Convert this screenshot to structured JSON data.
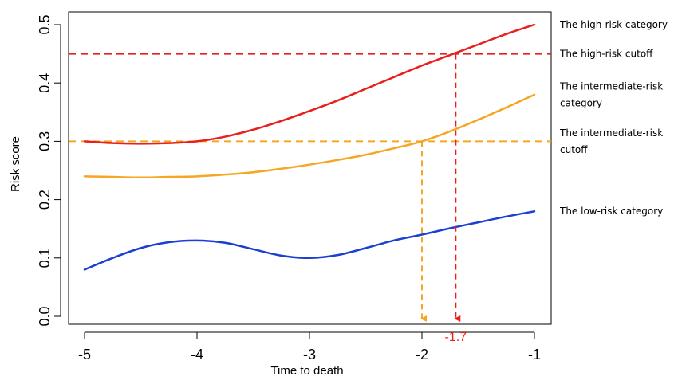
{
  "chart_data": {
    "type": "line",
    "title": "",
    "xlabel": "Time to death",
    "ylabel": "Risk score",
    "xlim": [
      -5.1,
      -0.85
    ],
    "ylim": [
      -0.02,
      0.525
    ],
    "x_ticks": [
      "-5",
      "-4",
      "-3",
      "-2",
      "-1"
    ],
    "y_ticks": [
      "0.0",
      "0.1",
      "0.2",
      "0.3",
      "0.4",
      "0.5"
    ],
    "grid": false,
    "legend_position": "right",
    "series": [
      {
        "name": "The high-risk category",
        "color": "#e8201c",
        "x": [
          -5.0,
          -4.75,
          -4.5,
          -4.25,
          -4.0,
          -3.75,
          -3.5,
          -3.25,
          -3.0,
          -2.75,
          -2.5,
          -2.25,
          -2.0,
          -1.75,
          -1.5,
          -1.25,
          -1.0
        ],
        "y": [
          0.3,
          0.297,
          0.296,
          0.297,
          0.3,
          0.308,
          0.32,
          0.335,
          0.352,
          0.37,
          0.39,
          0.41,
          0.43,
          0.448,
          0.466,
          0.484,
          0.5
        ]
      },
      {
        "name": "The intermediate-risk category",
        "color": "#f5a623",
        "x": [
          -5.0,
          -4.75,
          -4.5,
          -4.25,
          -4.0,
          -3.75,
          -3.5,
          -3.25,
          -3.0,
          -2.75,
          -2.5,
          -2.25,
          -2.0,
          -1.75,
          -1.5,
          -1.25,
          -1.0
        ],
        "y": [
          0.24,
          0.239,
          0.238,
          0.239,
          0.24,
          0.243,
          0.247,
          0.253,
          0.26,
          0.268,
          0.277,
          0.288,
          0.3,
          0.317,
          0.337,
          0.358,
          0.38
        ]
      },
      {
        "name": "The low-risk category",
        "color": "#1a3fd4",
        "x": [
          -5.0,
          -4.75,
          -4.5,
          -4.25,
          -4.0,
          -3.75,
          -3.5,
          -3.25,
          -3.0,
          -2.75,
          -2.5,
          -2.25,
          -2.0,
          -1.75,
          -1.5,
          -1.25,
          -1.0
        ],
        "y": [
          0.08,
          0.1,
          0.117,
          0.127,
          0.13,
          0.126,
          0.115,
          0.104,
          0.1,
          0.105,
          0.117,
          0.13,
          0.14,
          0.151,
          0.161,
          0.171,
          0.18
        ]
      }
    ],
    "cutoffs": [
      {
        "name": "The high-risk cutoff",
        "y": 0.45,
        "color": "#e8201c"
      },
      {
        "name": "The intermediate-risk cutoff",
        "y": 0.3,
        "color": "#f5a623"
      }
    ],
    "drop_lines": [
      {
        "x": -1.7,
        "from_y": 0.45,
        "color": "#e8201c",
        "label": "-1.7"
      },
      {
        "x": -2.0,
        "from_y": 0.3,
        "color": "#f5a623",
        "label": ""
      }
    ],
    "legend_labels": [
      {
        "lines": [
          "The high-risk category"
        ],
        "anchor_y": 0.5
      },
      {
        "lines": [
          "The high-risk cutoff"
        ],
        "anchor_y": 0.45
      },
      {
        "lines": [
          "The intermediate-risk",
          "category"
        ],
        "anchor_y": 0.38
      },
      {
        "lines": [
          "The intermediate-risk",
          "cutoff"
        ],
        "anchor_y": 0.3
      },
      {
        "lines": [
          "The low-risk category"
        ],
        "anchor_y": 0.18
      }
    ]
  }
}
